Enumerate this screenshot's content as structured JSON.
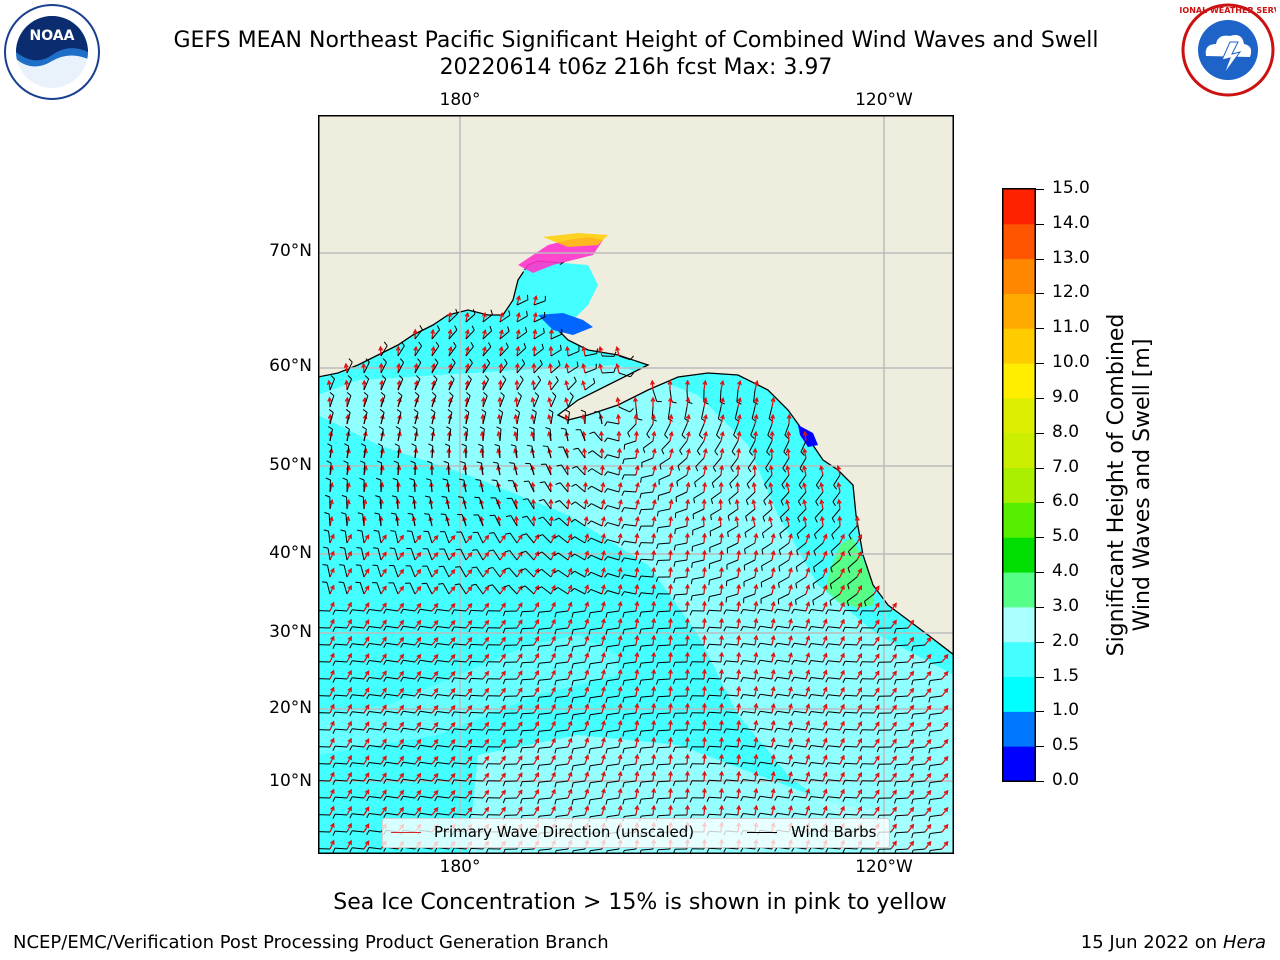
{
  "header": {
    "title_line1": "GEFS MEAN Northeast Pacific Significant Height of Combined Wind Waves and Swell",
    "title_line2": "20220614 t06z 216h fcst   Max: 3.97"
  },
  "logos": {
    "left": {
      "name": "noaa-logo",
      "text": "NOAA"
    },
    "right": {
      "name": "nws-logo",
      "text": "NATIONAL WEATHER SERVICE"
    }
  },
  "map": {
    "top_lon_ticks": [
      "180°",
      "120°W"
    ],
    "bottom_lon_ticks": [
      "180°",
      "120°W"
    ],
    "lat_ticks": [
      "70°N",
      "60°N",
      "50°N",
      "40°N",
      "30°N",
      "20°N",
      "10°N"
    ],
    "legend": {
      "wave_label": "Primary Wave Direction (unscaled)",
      "wind_label": "Wind Barbs",
      "wave_color": "#d62728",
      "wind_color": "#000000"
    },
    "colors": {
      "land": "#efedde",
      "coast": "#000000",
      "grid": "#bbbbbb"
    }
  },
  "colorbar": {
    "label_line1": "Significant Height of Combined",
    "label_line2": "Wind Waves and Swell [m]",
    "ticks": [
      "0.0",
      "0.5",
      "1.0",
      "1.5",
      "2.0",
      "3.0",
      "4.0",
      "5.0",
      "6.0",
      "7.0",
      "8.0",
      "9.0",
      "10.0",
      "11.0",
      "12.0",
      "13.0",
      "14.0",
      "15.0"
    ],
    "colors": [
      "#0000ff",
      "#0077ff",
      "#00ffff",
      "#44ffff",
      "#aaffff",
      "#55ff88",
      "#00dd00",
      "#55ee00",
      "#aaee00",
      "#ccee00",
      "#ddee00",
      "#ffee00",
      "#ffcc00",
      "#ffaa00",
      "#ff8800",
      "#ff5500",
      "#ff2200"
    ]
  },
  "footer": {
    "caption": "Sea Ice Concentration > 15% is shown in pink to yellow",
    "left": "NCEP/EMC/Verification Post Processing Product Generation Branch",
    "right_date": "15 Jun 2022 on",
    "right_machine": "Hera"
  }
}
